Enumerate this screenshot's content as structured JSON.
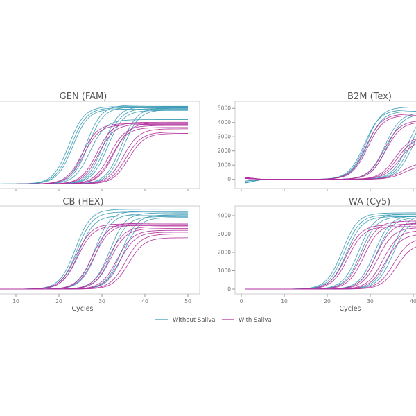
{
  "chart_data": [
    {
      "type": "line",
      "title": "GEN (FAM)",
      "xlabel": "",
      "xlim": [
        1,
        50
      ],
      "xticks": [
        10,
        20,
        30,
        40,
        50
      ],
      "ylim": [
        -350,
        6300
      ],
      "yticks": [],
      "series": [
        {
          "name": "Without Saliva",
          "curves": [
            {
              "ct": 22.3,
              "plateau": 5900
            },
            {
              "ct": 22.8,
              "plateau": 5800
            },
            {
              "ct": 23.2,
              "plateau": 5700
            },
            {
              "ct": 26.3,
              "plateau": 6000
            },
            {
              "ct": 26.8,
              "plateau": 5850
            },
            {
              "ct": 27.2,
              "plateau": 4900
            },
            {
              "ct": 30.3,
              "plateau": 5900
            },
            {
              "ct": 30.8,
              "plateau": 5750
            },
            {
              "ct": 31.3,
              "plateau": 5600
            },
            {
              "ct": 34.5,
              "plateau": 5800
            },
            {
              "ct": 35.0,
              "plateau": 5650
            }
          ]
        },
        {
          "name": "With Saliva",
          "curves": [
            {
              "ct": 25.4,
              "plateau": 4600
            },
            {
              "ct": 25.8,
              "plateau": 4500
            },
            {
              "ct": 28.8,
              "plateau": 4700
            },
            {
              "ct": 29.2,
              "plateau": 4550
            },
            {
              "ct": 31.8,
              "plateau": 4450
            },
            {
              "ct": 32.3,
              "plateau": 4300
            },
            {
              "ct": 32.8,
              "plateau": 4650
            },
            {
              "ct": 35.0,
              "plateau": 4200
            },
            {
              "ct": 35.6,
              "plateau": 3950
            },
            {
              "ct": 36.2,
              "plateau": 3850
            }
          ]
        }
      ]
    },
    {
      "type": "line",
      "title": "B2M (Tex)",
      "xlabel": "",
      "xlim": [
        1,
        50
      ],
      "xticks": [
        0,
        10,
        20,
        30,
        40
      ],
      "ylim": [
        -650,
        5500
      ],
      "yticks": [
        0,
        1000,
        2000,
        3000,
        4000,
        5000
      ],
      "series": [
        {
          "name": "Without Saliva",
          "curves": [
            {
              "ct": 28.6,
              "plateau": 4900
            },
            {
              "ct": 29.0,
              "plateau": 5100
            },
            {
              "ct": 29.3,
              "plateau": 4800
            },
            {
              "ct": 33.4,
              "plateau": 4700
            },
            {
              "ct": 33.9,
              "plateau": 4600
            },
            {
              "ct": 38.8,
              "plateau": 5000
            },
            {
              "ct": 39.3,
              "plateau": 4800
            },
            {
              "ct": 39.8,
              "plateau": 4600
            }
          ]
        },
        {
          "name": "With Saliva",
          "curves": [
            {
              "ct": 29.0,
              "plateau": 4600
            },
            {
              "ct": 29.4,
              "plateau": 4500
            },
            {
              "ct": 33.2,
              "plateau": 4150
            },
            {
              "ct": 33.6,
              "plateau": 4050
            },
            {
              "ct": 35.8,
              "plateau": 3050
            },
            {
              "ct": 36.3,
              "plateau": 2950
            },
            {
              "ct": 36.8,
              "plateau": 2800
            },
            {
              "ct": 37.5,
              "plateau": 1200
            },
            {
              "ct": 38.0,
              "plateau": 1000
            }
          ]
        }
      ]
    },
    {
      "type": "line",
      "title": "CB (HEX)",
      "xlabel": "Cycles",
      "xlim": [
        1,
        50
      ],
      "xticks": [
        10,
        20,
        30,
        40,
        50
      ],
      "ylim": [
        -264,
        4528
      ],
      "yticks": [],
      "series": [
        {
          "name": "Without Saliva",
          "curves": [
            {
              "ct": 23.8,
              "plateau": 4350
            },
            {
              "ct": 24.2,
              "plateau": 4200
            },
            {
              "ct": 24.6,
              "plateau": 4000
            },
            {
              "ct": 28.3,
              "plateau": 4250
            },
            {
              "ct": 28.8,
              "plateau": 4100
            },
            {
              "ct": 31.8,
              "plateau": 4150
            },
            {
              "ct": 32.3,
              "plateau": 3950
            },
            {
              "ct": 34.5,
              "plateau": 4050
            },
            {
              "ct": 35.0,
              "plateau": 3900
            }
          ]
        },
        {
          "name": "With Saliva",
          "curves": [
            {
              "ct": 23.9,
              "plateau": 3550
            },
            {
              "ct": 24.3,
              "plateau": 3450
            },
            {
              "ct": 27.8,
              "plateau": 3600
            },
            {
              "ct": 28.2,
              "plateau": 3500
            },
            {
              "ct": 31.5,
              "plateau": 3400
            },
            {
              "ct": 32.0,
              "plateau": 3300
            },
            {
              "ct": 33.5,
              "plateau": 3200
            },
            {
              "ct": 34.2,
              "plateau": 3100
            },
            {
              "ct": 35.5,
              "plateau": 3000
            },
            {
              "ct": 36.2,
              "plateau": 2800
            }
          ]
        }
      ]
    },
    {
      "type": "line",
      "title": "WA (Cy5)",
      "xlabel": "Cycles",
      "xlim": [
        1,
        50
      ],
      "xticks": [
        0,
        10,
        20,
        30,
        40
      ],
      "ylim": [
        -264,
        4528
      ],
      "yticks": [
        0,
        1000,
        2000,
        3000,
        4000
      ],
      "series": [
        {
          "name": "Without Saliva",
          "curves": [
            {
              "ct": 23.5,
              "plateau": 4150
            },
            {
              "ct": 24.0,
              "plateau": 4050
            },
            {
              "ct": 24.5,
              "plateau": 3950
            },
            {
              "ct": 27.3,
              "plateau": 4100
            },
            {
              "ct": 27.8,
              "plateau": 3950
            },
            {
              "ct": 31.0,
              "plateau": 4000
            },
            {
              "ct": 31.5,
              "plateau": 3900
            },
            {
              "ct": 34.8,
              "plateau": 4050
            },
            {
              "ct": 35.3,
              "plateau": 3850
            }
          ]
        },
        {
          "name": "With Saliva",
          "curves": [
            {
              "ct": 24.3,
              "plateau": 3500
            },
            {
              "ct": 24.8,
              "plateau": 3400
            },
            {
              "ct": 28.0,
              "plateau": 3700
            },
            {
              "ct": 28.5,
              "plateau": 3550
            },
            {
              "ct": 31.3,
              "plateau": 3600
            },
            {
              "ct": 31.8,
              "plateau": 3350
            },
            {
              "ct": 33.0,
              "plateau": 3200
            },
            {
              "ct": 33.6,
              "plateau": 3000
            },
            {
              "ct": 35.5,
              "plateau": 2800
            },
            {
              "ct": 36.2,
              "plateau": 2500
            }
          ]
        }
      ]
    }
  ],
  "legend": {
    "position": "bottom-center",
    "items": [
      {
        "label": "Without Saliva",
        "color": "#3a9bb6"
      },
      {
        "label": "With Saliva",
        "color": "#b1309c"
      }
    ]
  }
}
